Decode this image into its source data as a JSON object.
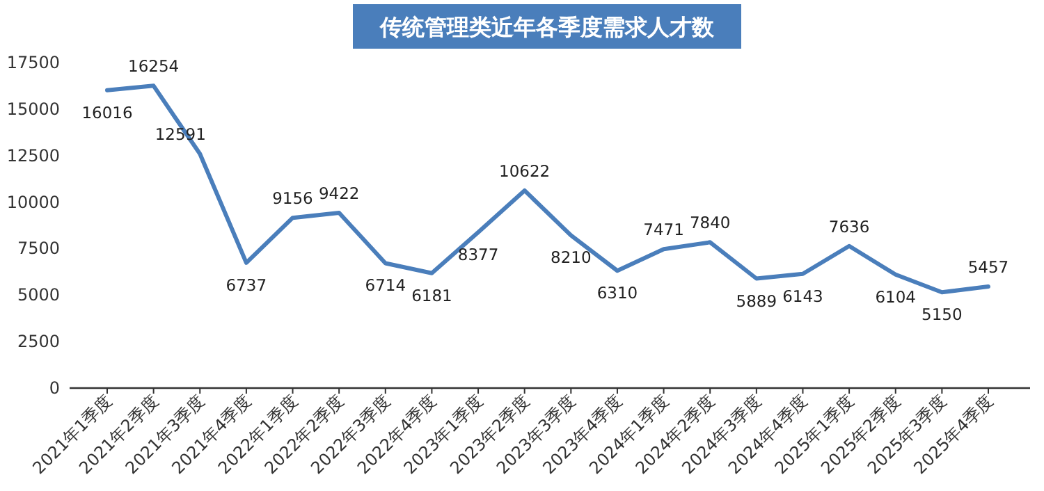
{
  "chart_data": {
    "type": "line",
    "title": "传统管理类近年各季度需求人才数",
    "categories": [
      "2021年1季度",
      "2021年2季度",
      "2021年3季度",
      "2021年4季度",
      "2022年1季度",
      "2022年2季度",
      "2022年3季度",
      "2022年4季度",
      "2023年1季度",
      "2023年2季度",
      "2023年3季度",
      "2023年4季度",
      "2024年1季度",
      "2024年2季度",
      "2024年3季度",
      "2024年4季度",
      "2025年1季度",
      "2025年2季度",
      "2025年3季度",
      "2025年4季度"
    ],
    "series": [
      {
        "color": "#4a7ebb",
        "values": [
          16016,
          16254,
          12591,
          6737,
          9156,
          9422,
          6714,
          6181,
          8377,
          10622,
          8210,
          6310,
          7471,
          7840,
          5889,
          6143,
          7636,
          6104,
          5150,
          5457
        ]
      }
    ],
    "ylim": [
      0,
      17500
    ],
    "yticks": [
      0,
      2500,
      5000,
      7500,
      10000,
      12500,
      15000,
      17500
    ],
    "grid": false,
    "data_labels": true,
    "marker": "none",
    "line_style": "solid"
  }
}
